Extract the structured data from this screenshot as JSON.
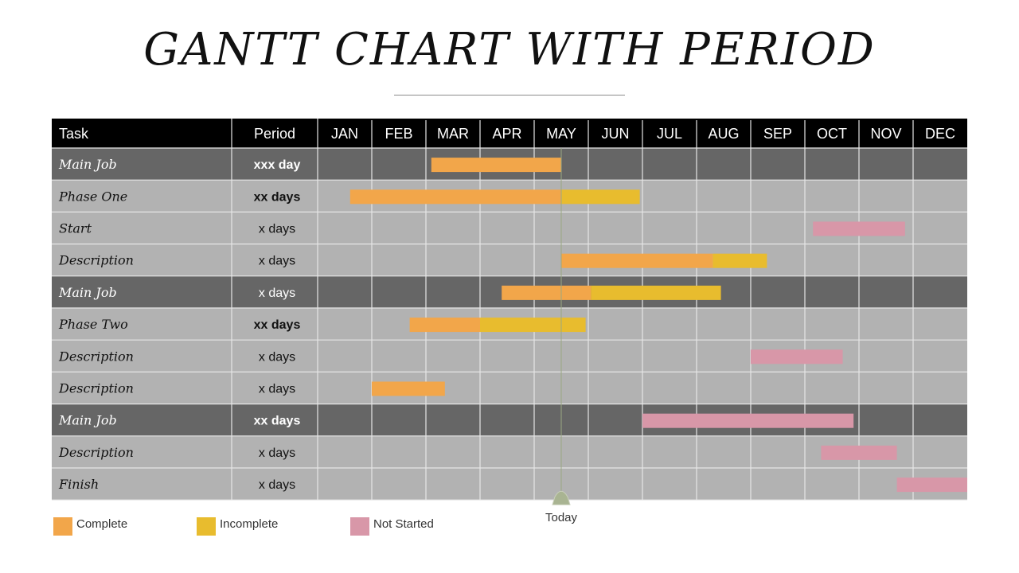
{
  "title": "GANTT CHART WITH PERIOD",
  "chart_data": {
    "type": "gantt",
    "columns": {
      "task": "Task",
      "period": "Period"
    },
    "months": [
      "JAN",
      "FEB",
      "MAR",
      "APR",
      "MAY",
      "JUN",
      "JUL",
      "AUG",
      "SEP",
      "OCT",
      "NOV",
      "DEC"
    ],
    "today": {
      "label": "Today",
      "month": 4.5
    },
    "colors": {
      "complete": "#f2a64a",
      "incomplete": "#e8bc2e",
      "not_started": "#d897a8",
      "header": "#000000",
      "main_row": "#666666",
      "sub_row": "#b2b2b2"
    },
    "legend": [
      {
        "key": "complete",
        "label": "Complete"
      },
      {
        "key": "incomplete",
        "label": "Incomplete"
      },
      {
        "key": "not_started",
        "label": "Not  Started"
      }
    ],
    "tasks": [
      {
        "name": "Main Job",
        "period": "xxx day",
        "bold": true,
        "main": true,
        "segments": [
          {
            "status": "complete",
            "start": 2.1,
            "end": 4.5
          }
        ]
      },
      {
        "name": "Phase One",
        "period": "xx days",
        "bold": true,
        "main": false,
        "segments": [
          {
            "status": "complete",
            "start": 0.6,
            "end": 4.5
          },
          {
            "status": "incomplete",
            "start": 4.5,
            "end": 5.95
          }
        ]
      },
      {
        "name": "Start",
        "period": "x days",
        "bold": false,
        "main": false,
        "segments": [
          {
            "status": "not_started",
            "start": 9.15,
            "end": 10.85
          }
        ]
      },
      {
        "name": "Description",
        "period": "x days",
        "bold": false,
        "main": false,
        "segments": [
          {
            "status": "complete",
            "start": 4.5,
            "end": 7.3
          },
          {
            "status": "incomplete",
            "start": 7.3,
            "end": 8.3
          }
        ]
      },
      {
        "name": "Main Job",
        "period": "x days",
        "bold": false,
        "main": true,
        "segments": [
          {
            "status": "complete",
            "start": 3.4,
            "end": 5.05
          },
          {
            "status": "incomplete",
            "start": 5.05,
            "end": 7.45
          }
        ]
      },
      {
        "name": "Phase Two",
        "period": "xx days",
        "bold": true,
        "main": false,
        "segments": [
          {
            "status": "complete",
            "start": 1.7,
            "end": 3.0
          },
          {
            "status": "incomplete",
            "start": 3.0,
            "end": 4.95
          }
        ]
      },
      {
        "name": "Description",
        "period": "x days",
        "bold": false,
        "main": false,
        "segments": [
          {
            "status": "not_started",
            "start": 8.0,
            "end": 9.7
          }
        ]
      },
      {
        "name": "Description",
        "period": "x days",
        "bold": false,
        "main": false,
        "segments": [
          {
            "status": "complete",
            "start": 1.0,
            "end": 2.35
          }
        ]
      },
      {
        "name": "Main Job",
        "period": "xx days",
        "bold": true,
        "main": true,
        "segments": [
          {
            "status": "not_started",
            "start": 6.0,
            "end": 9.9
          }
        ]
      },
      {
        "name": "Description",
        "period": "x days",
        "bold": false,
        "main": false,
        "segments": [
          {
            "status": "not_started",
            "start": 9.3,
            "end": 10.7
          }
        ]
      },
      {
        "name": "Finish",
        "period": "x days",
        "bold": false,
        "main": false,
        "segments": [
          {
            "status": "not_started",
            "start": 10.7,
            "end": 12.0
          }
        ]
      }
    ]
  }
}
